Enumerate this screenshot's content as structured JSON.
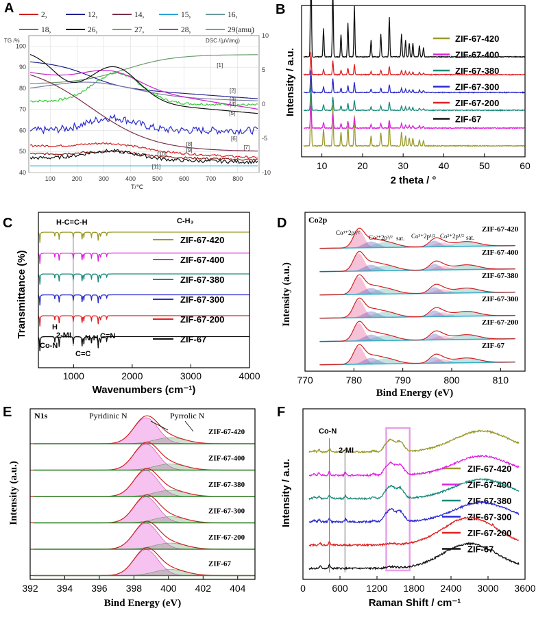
{
  "chart_data": [
    {
      "panel": "A",
      "type": "line",
      "xlabel": "T/℃",
      "ylabel_left": "TG /%",
      "ylabel_right": "DSC /(μV/mg)",
      "right_arrow": "↑",
      "xlim": [
        20,
        880
      ],
      "ylim_left": [
        40,
        105
      ],
      "ylim_right": [
        -10,
        10
      ],
      "x_ticks": [
        100,
        200,
        300,
        400,
        500,
        600,
        700,
        800
      ],
      "y_ticks_left": [
        40,
        50,
        60,
        70,
        80,
        90,
        100
      ],
      "y_ticks_right": [
        10,
        5,
        0,
        -5,
        -10
      ],
      "legend": [
        {
          "label": "2,",
          "color": "#d02020"
        },
        {
          "label": "12,",
          "color": "#20208e"
        },
        {
          "label": "14,",
          "color": "#7a2f4a"
        },
        {
          "label": "15,",
          "color": "#2aa6d8"
        },
        {
          "label": "16,",
          "color": "#6a9a9a"
        },
        {
          "label": "18,",
          "color": "#6a6a9a"
        },
        {
          "label": "26,",
          "color": "#111111"
        },
        {
          "label": "27,",
          "color": "#33cc33"
        },
        {
          "label": "28,",
          "color": "#cc22cc"
        },
        {
          "label": "29(amu)",
          "color": "#33bbbb"
        }
      ],
      "curve_labels": [
        "[1]",
        "[2]",
        "[3]",
        "[4]",
        "[5]",
        "[6]",
        "[7]",
        "[8]",
        "[9]",
        "[10]",
        "[11]"
      ]
    },
    {
      "panel": "B",
      "type": "line",
      "xlabel": "2 theta / °",
      "ylabel": "Intensity / a.u.",
      "xlim": [
        5,
        60
      ],
      "x_ticks": [
        10,
        20,
        30,
        40,
        50,
        60
      ],
      "series": [
        {
          "name": "ZIF-67-420",
          "color": "#9a9a2a"
        },
        {
          "name": "ZIF-67-400",
          "color": "#e020e0"
        },
        {
          "name": "ZIF-67-380",
          "color": "#1a8a7a"
        },
        {
          "name": "ZIF-67-300",
          "color": "#2a2ad0"
        },
        {
          "name": "ZIF-67-200",
          "color": "#e02020"
        },
        {
          "name": "ZIF-67",
          "color": "#111111"
        }
      ],
      "peaks_2theta": [
        7.3,
        10.4,
        12.7,
        14.7,
        16.4,
        18.0,
        22.1,
        24.5,
        26.6,
        29.6,
        30.6,
        31.5,
        32.4,
        34.0,
        35.0
      ]
    },
    {
      "panel": "C",
      "type": "line",
      "xlabel": "Wavenumbers (cm⁻¹)",
      "ylabel": "Transmittance (%)",
      "xlim": [
        400,
        4000
      ],
      "x_ticks": [
        1000,
        2000,
        3000,
        4000
      ],
      "series_names": [
        "ZIF-67-420",
        "ZIF-67-400",
        "ZIF-67-380",
        "ZIF-67-300",
        "ZIF-67-200",
        "ZIF-67"
      ],
      "annotations": [
        "H-C=C-H",
        "C-H₃",
        "Co-N",
        "H",
        "2-MI",
        "C=C",
        "N-H",
        "C=N"
      ],
      "bands_cm": [
        425,
        755,
        995,
        1145,
        1305,
        1420
      ]
    },
    {
      "panel": "D",
      "type": "line",
      "title": "Co2p",
      "xlabel": "Bind Energy (eV)",
      "ylabel": "Intensity (a.u.)",
      "xlim": [
        770,
        815
      ],
      "x_ticks": [
        770,
        780,
        790,
        800,
        810
      ],
      "series_names": [
        "ZIF-67-420",
        "ZIF-67-400",
        "ZIF-67-380",
        "ZIF-67-300",
        "ZIF-67-200",
        "ZIF-67"
      ],
      "peak_labels": [
        "Co³⁺2p³/²",
        "Co²⁺2p³/²",
        "sat.",
        "Co³⁺2p¹/²",
        "Co²⁺2p¹/²",
        "sat."
      ]
    },
    {
      "panel": "E",
      "type": "line",
      "title": "N1s",
      "xlabel": "Bind Energy (eV)",
      "ylabel": "Intensity (a.u.)",
      "xlim": [
        392,
        405
      ],
      "x_ticks": [
        392,
        394,
        396,
        398,
        400,
        402,
        404
      ],
      "series_names": [
        "ZIF-67-420",
        "ZIF-67-400",
        "ZIF-67-380",
        "ZIF-67-300",
        "ZIF-67-200",
        "ZIF-67"
      ],
      "peak_labels": [
        "Pyridinic N",
        "Pyrrolic N"
      ]
    },
    {
      "panel": "F",
      "type": "line",
      "xlabel": "Raman Shift / cm⁻¹",
      "ylabel": "Intensity / a.u.",
      "xlim": [
        0,
        3600
      ],
      "x_ticks": [
        0,
        600,
        1200,
        1800,
        2400,
        3000,
        3600
      ],
      "annotations": [
        "Co-N",
        "2-MI"
      ],
      "series": [
        {
          "name": "ZIF-67-420",
          "color": "#9a9a2a"
        },
        {
          "name": "ZIF-67-400",
          "color": "#e020e0"
        },
        {
          "name": "ZIF-67-380",
          "color": "#1a8a7a"
        },
        {
          "name": "ZIF-67-300",
          "color": "#2a2ad0"
        },
        {
          "name": "ZIF-67-200",
          "color": "#e02020"
        },
        {
          "name": "ZIF-67",
          "color": "#111111"
        }
      ]
    }
  ],
  "panel_labels": [
    "A",
    "B",
    "C",
    "D",
    "E",
    "F"
  ]
}
